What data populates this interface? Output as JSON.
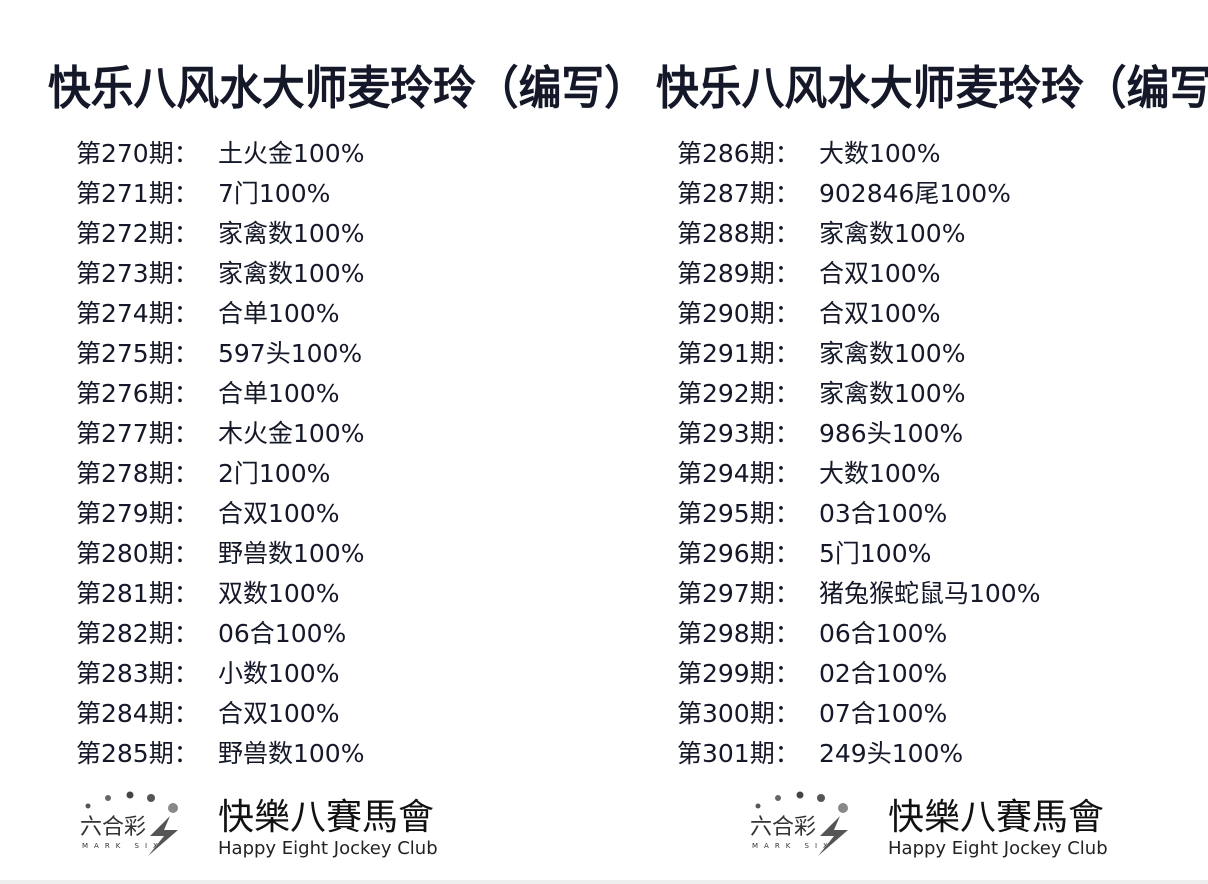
{
  "left": {
    "title": "快乐八风水大师麦玲玲（编写）",
    "rows": [
      {
        "period": "第270期：",
        "value": "土火金100%"
      },
      {
        "period": "第271期：",
        "value": "7门100%"
      },
      {
        "period": "第272期：",
        "value": "家禽数100%"
      },
      {
        "period": "第273期：",
        "value": "家禽数100%"
      },
      {
        "period": "第274期：",
        "value": "合单100%"
      },
      {
        "period": "第275期：",
        "value": "597头100%"
      },
      {
        "period": "第276期：",
        "value": "合单100%"
      },
      {
        "period": "第277期：",
        "value": "木火金100%"
      },
      {
        "period": "第278期：",
        "value": "2门100%"
      },
      {
        "period": "第279期：",
        "value": "合双100%"
      },
      {
        "period": "第280期：",
        "value": "野兽数100%"
      },
      {
        "period": "第281期：",
        "value": "双数100%"
      },
      {
        "period": "第282期：",
        "value": "06合100%"
      },
      {
        "period": "第283期：",
        "value": "小数100%"
      },
      {
        "period": "第284期：",
        "value": "合双100%"
      },
      {
        "period": "第285期：",
        "value": "野兽数100%"
      }
    ]
  },
  "right": {
    "title": "快乐八风水大师麦玲玲（编写）",
    "rows": [
      {
        "period": "第286期：",
        "value": "大数100%"
      },
      {
        "period": "第287期：",
        "value": "902846尾100%"
      },
      {
        "period": "第288期：",
        "value": "家禽数100%"
      },
      {
        "period": "第289期：",
        "value": "合双100%"
      },
      {
        "period": "第290期：",
        "value": "合双100%"
      },
      {
        "period": "第291期：",
        "value": "家禽数100%"
      },
      {
        "period": "第292期：",
        "value": "家禽数100%"
      },
      {
        "period": "第293期：",
        "value": "986头100%"
      },
      {
        "period": "第294期：",
        "value": "大数100%"
      },
      {
        "period": "第295期：",
        "value": "03合100%"
      },
      {
        "period": "第296期：",
        "value": "5门100%"
      },
      {
        "period": "第297期：",
        "value": "猪兔猴蛇鼠马100%"
      },
      {
        "period": "第298期：",
        "value": "06合100%"
      },
      {
        "period": "第299期：",
        "value": "02合100%"
      },
      {
        "period": "第300期：",
        "value": "07合100%"
      },
      {
        "period": "第301期：",
        "value": "249头100%"
      }
    ]
  },
  "logo": {
    "mark_zh": "六合彩",
    "mark_en": "MARK SIX",
    "club_zh": "快樂八賽馬會",
    "club_en": "Happy Eight Jockey Club"
  }
}
